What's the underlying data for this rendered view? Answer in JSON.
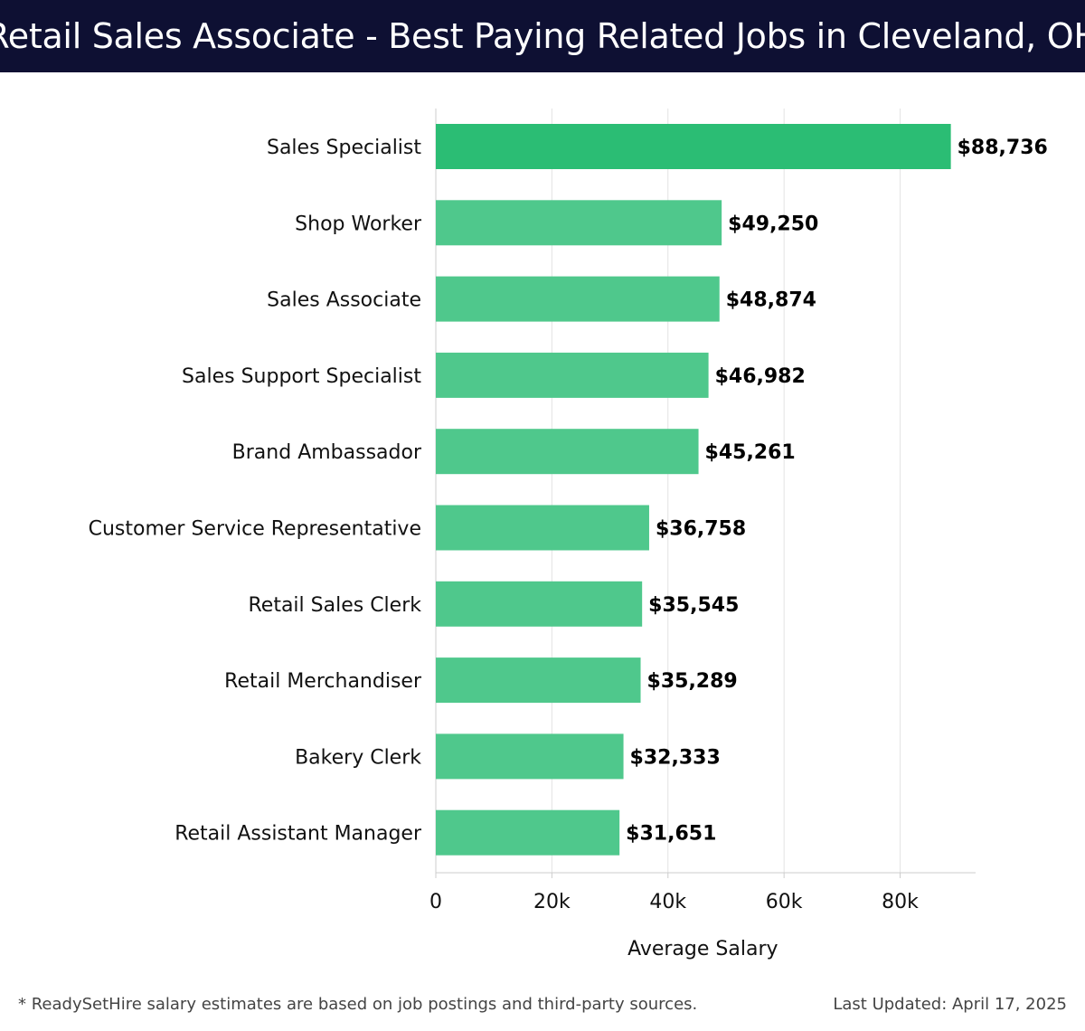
{
  "header": {
    "title": "Retail Sales Associate - Best Paying Related Jobs in Cleveland, OH"
  },
  "chart_data": {
    "type": "bar",
    "orientation": "horizontal",
    "title": "Retail Sales Associate - Best Paying Related Jobs in Cleveland, OH",
    "xlabel": "Average Salary",
    "ylabel": "",
    "xlim": [
      0,
      93000
    ],
    "xticks": [
      0,
      20000,
      40000,
      60000,
      80000
    ],
    "xtick_labels": [
      "0",
      "20k",
      "40k",
      "60k",
      "80k"
    ],
    "categories": [
      "Sales Specialist",
      "Shop Worker",
      "Sales Associate",
      "Sales Support Specialist",
      "Brand Ambassador",
      "Customer Service Representative",
      "Retail Sales Clerk",
      "Retail Merchandiser",
      "Bakery Clerk",
      "Retail Assistant Manager"
    ],
    "values": [
      88736,
      49250,
      48874,
      46982,
      45261,
      36758,
      35545,
      35289,
      32333,
      31651
    ],
    "value_labels": [
      "$88,736",
      "$49,250",
      "$48,874",
      "$46,982",
      "$45,261",
      "$36,758",
      "$35,545",
      "$35,289",
      "$32,333",
      "$31,651"
    ],
    "grid": true,
    "colors": {
      "top_bar": "#2bbd74",
      "bar": "#4fc88c",
      "grid": "#e3e3e3",
      "axis": "#cccccc",
      "text": "#111111",
      "value_text": "#000000"
    }
  },
  "footer": {
    "note": "* ReadySetHire salary estimates are based on job postings and third-party sources.",
    "updated": "Last Updated: April 17, 2025"
  }
}
